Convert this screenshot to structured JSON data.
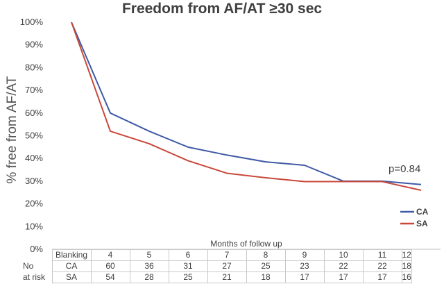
{
  "chart_data": {
    "type": "line",
    "title": "Freedom from AF/AT ≥30 sec",
    "ylabel": "% free from AF/AT",
    "xlabel": "Months of follow up",
    "categories": [
      "Blanking",
      "4",
      "5",
      "6",
      "7",
      "8",
      "9",
      "10",
      "11",
      "12"
    ],
    "ylim": [
      0,
      100
    ],
    "yticks": [
      "0%",
      "10%",
      "20%",
      "30%",
      "40%",
      "50%",
      "60%",
      "70%",
      "80%",
      "90%",
      "100%"
    ],
    "series": [
      {
        "name": "CA",
        "color": "#3f5aa6",
        "values": [
          100,
          60,
          52,
          45,
          41.5,
          38.5,
          37,
          30,
          30,
          28.5
        ]
      },
      {
        "name": "SA",
        "color": "#c8473a",
        "values": [
          100,
          52,
          46.5,
          39,
          33.5,
          31.5,
          29.8,
          29.8,
          29.8,
          26
        ]
      }
    ],
    "annotation": "p=0.84",
    "legend_position": "bottom-right",
    "grid": false
  },
  "risk_table": {
    "header": [
      "Blanking",
      "4",
      "5",
      "6",
      "7",
      "8",
      "9",
      "10",
      "11",
      "12"
    ],
    "label_line1": "No",
    "label_line2": "at risk",
    "rows": [
      {
        "name": "CA",
        "values": [
          "60",
          "36",
          "31",
          "27",
          "25",
          "23",
          "22",
          "22",
          "18"
        ]
      },
      {
        "name": "SA",
        "values": [
          "54",
          "28",
          "25",
          "21",
          "18",
          "17",
          "17",
          "17",
          "16"
        ]
      }
    ]
  }
}
